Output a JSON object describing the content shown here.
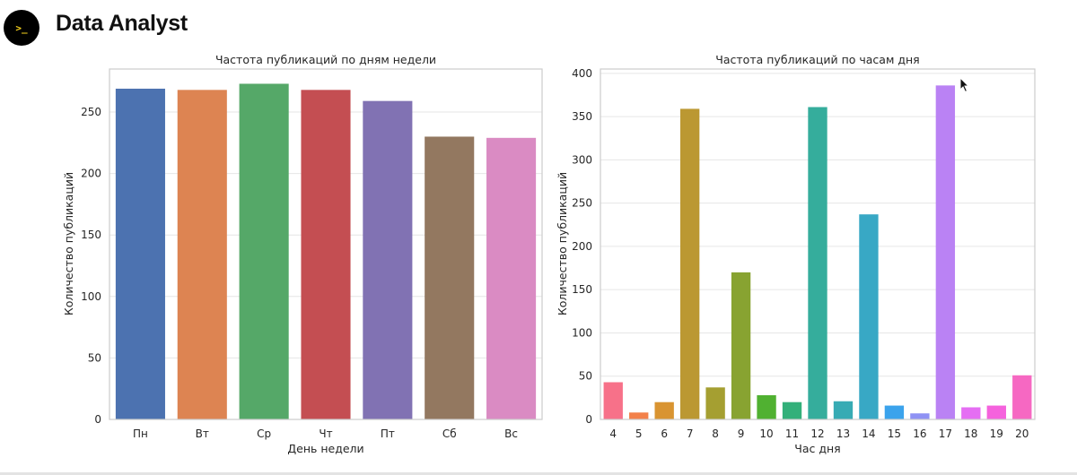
{
  "app": {
    "title": "Data Analyst",
    "logo_icon": "terminal-prompt-icon",
    "logo_glyph": ">_"
  },
  "colors": {
    "logo_bg": "#000000",
    "logo_glyph": "#f6d21d",
    "grid": "#e6e6e6",
    "axis_frame": "#cccccc"
  },
  "chart_data": [
    {
      "type": "bar",
      "title": "Частота публикаций по дням недели",
      "xlabel": "День недели",
      "ylabel": "Количество публикаций",
      "categories": [
        "Пн",
        "Вт",
        "Ср",
        "Чт",
        "Пт",
        "Сб",
        "Вс"
      ],
      "values": [
        269,
        268,
        273,
        268,
        259,
        230,
        229
      ],
      "colors": [
        "#4c72b0",
        "#dd8452",
        "#55a868",
        "#c44e52",
        "#8172b3",
        "#937860",
        "#da8bc3"
      ],
      "ylim": [
        0,
        285
      ],
      "yticks": [
        0,
        50,
        100,
        150,
        200,
        250
      ],
      "grid": true,
      "legend": "none"
    },
    {
      "type": "bar",
      "title": "Частота публикаций по часам дня",
      "xlabel": "Час дня",
      "ylabel": "Количество публикаций",
      "categories": [
        "4",
        "5",
        "6",
        "7",
        "8",
        "9",
        "10",
        "11",
        "12",
        "13",
        "14",
        "15",
        "16",
        "17",
        "18",
        "19",
        "20"
      ],
      "values": [
        43,
        8,
        20,
        359,
        37,
        170,
        28,
        20,
        361,
        21,
        237,
        16,
        7,
        386,
        14,
        16,
        51
      ],
      "colors": [
        "#f77189",
        "#f3814a",
        "#d99431",
        "#bb9832",
        "#a59f31",
        "#88a331",
        "#50b131",
        "#33b07a",
        "#35ad9c",
        "#37abb4",
        "#38a8c5",
        "#3ba3ec",
        "#8f92f4",
        "#ba82f4",
        "#e56ef3",
        "#f562dd",
        "#f668c2"
      ],
      "ylim": [
        0,
        405
      ],
      "yticks": [
        0,
        50,
        100,
        150,
        200,
        250,
        300,
        350,
        400
      ],
      "grid": true,
      "legend": "none"
    }
  ]
}
